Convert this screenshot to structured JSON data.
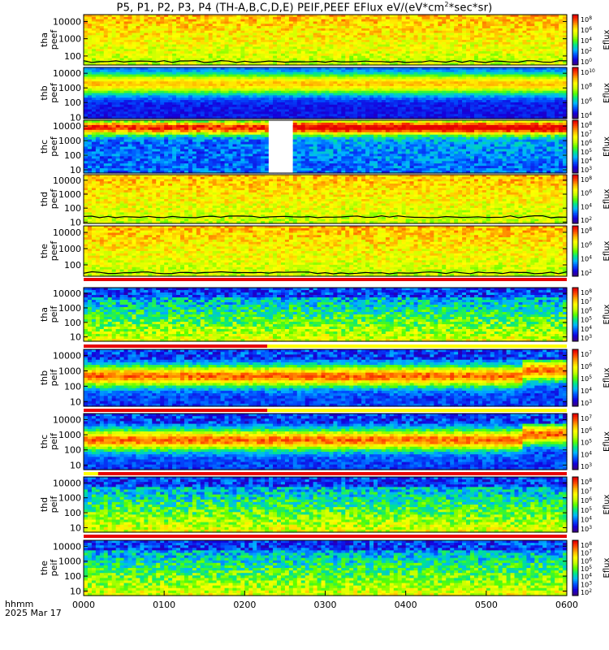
{
  "title_prefix": "P5, P1, P2, P3, P4 (TH-A,B,C,D,E) PEIF,PEEF EFlux eV/(eV*cm",
  "title_sup": "2",
  "title_suffix": "*sec*sr)",
  "footer": {
    "hhmm_label": "hhmm",
    "date_label": "2025 Mar 17"
  },
  "colors": {
    "spectrum": [
      "#3c0082",
      "#1400dc",
      "#0050ff",
      "#00b4ff",
      "#00e68c",
      "#5aff00",
      "#c8ff00",
      "#ffff00",
      "#ffb400",
      "#ff5000",
      "#e60000"
    ]
  },
  "chart_data": [
    {
      "type": "heatmap",
      "probe": "tha",
      "species": "peef",
      "ylabels": [
        "tha",
        "peef"
      ],
      "yscale": "log",
      "yticks": [
        "10000",
        "1000",
        "100"
      ],
      "ylim": [
        30,
        25000
      ],
      "colorbar": {
        "label": "Eflux",
        "ticks": [
          "10^8",
          "10^6",
          "10^4",
          "10^2",
          "10^0"
        ]
      },
      "x_ticks": [
        "0000",
        "0100",
        "0200",
        "0300",
        "0400",
        "0500",
        "0600"
      ]
    },
    {
      "type": "heatmap",
      "probe": "thb",
      "species": "peef",
      "ylabels": [
        "thb",
        "peef"
      ],
      "yscale": "log",
      "yticks": [
        "10000",
        "1000",
        "100",
        "10"
      ],
      "ylim": [
        8,
        25000
      ],
      "colorbar": {
        "label": "Eflux",
        "ticks": [
          "10^10",
          "10^8",
          "10^6",
          "10^4"
        ]
      },
      "x_ticks": [
        "0000",
        "0100",
        "0200",
        "0300",
        "0400",
        "0500",
        "0600"
      ]
    },
    {
      "type": "heatmap",
      "probe": "thc",
      "species": "peef",
      "ylabels": [
        "thc",
        "peef"
      ],
      "yscale": "log",
      "yticks": [
        "10000",
        "1000",
        "100",
        "10"
      ],
      "ylim": [
        6,
        25000
      ],
      "colorbar": {
        "label": "Eflux",
        "ticks": [
          "10^8",
          "10^7",
          "10^6",
          "10^5",
          "10^4",
          "10^3"
        ]
      },
      "x_ticks": [
        "0000",
        "0100",
        "0200",
        "0300",
        "0400",
        "0500",
        "0600"
      ]
    },
    {
      "type": "heatmap",
      "probe": "thd",
      "species": "peef",
      "ylabels": [
        "thd",
        "peef"
      ],
      "yscale": "log",
      "yticks": [
        "10000",
        "1000",
        "100",
        "10"
      ],
      "ylim": [
        8,
        25000
      ],
      "colorbar": {
        "label": "Eflux",
        "ticks": [
          "10^8",
          "10^6",
          "10^4",
          "10^2"
        ]
      },
      "x_ticks": [
        "0000",
        "0100",
        "0200",
        "0300",
        "0400",
        "0500",
        "0600"
      ]
    },
    {
      "type": "heatmap",
      "probe": "the",
      "species": "peef",
      "ylabels": [
        "the",
        "peef"
      ],
      "yscale": "log",
      "yticks": [
        "10000",
        "1000",
        "100"
      ],
      "ylim": [
        20,
        25000
      ],
      "colorbar": {
        "label": "Eflux",
        "ticks": [
          "10^8",
          "10^6",
          "10^4",
          "10^2"
        ]
      },
      "x_ticks": [
        "0000",
        "0100",
        "0200",
        "0300",
        "0400",
        "0500",
        "0600"
      ]
    },
    {
      "type": "heatmap",
      "probe": "tha",
      "species": "peif",
      "ylabels": [
        "tha",
        "peif"
      ],
      "yscale": "log",
      "yticks": [
        "10000",
        "1000",
        "100",
        "10"
      ],
      "ylim": [
        5,
        25000
      ],
      "colorbar": {
        "label": "Eflux",
        "ticks": [
          "10^8",
          "10^7",
          "10^6",
          "10^5",
          "10^4",
          "10^3"
        ]
      },
      "x_ticks": [
        "0000",
        "0100",
        "0200",
        "0300",
        "0400",
        "0500",
        "0600"
      ]
    },
    {
      "type": "heatmap",
      "probe": "thb",
      "species": "peif",
      "ylabels": [
        "thb",
        "peif"
      ],
      "yscale": "log",
      "yticks": [
        "10000",
        "1000",
        "100",
        "10"
      ],
      "ylim": [
        5,
        25000
      ],
      "colorbar": {
        "label": "Eflux",
        "ticks": [
          "10^7",
          "10^6",
          "10^5",
          "10^4",
          "10^3"
        ]
      },
      "x_ticks": [
        "0000",
        "0100",
        "0200",
        "0300",
        "0400",
        "0500",
        "0600"
      ]
    },
    {
      "type": "heatmap",
      "probe": "thc",
      "species": "peif",
      "ylabels": [
        "thc",
        "peif"
      ],
      "yscale": "log",
      "yticks": [
        "10000",
        "1000",
        "100",
        "10"
      ],
      "ylim": [
        5,
        25000
      ],
      "colorbar": {
        "label": "Eflux",
        "ticks": [
          "10^7",
          "10^6",
          "10^5",
          "10^4",
          "10^3"
        ]
      },
      "x_ticks": [
        "0000",
        "0100",
        "0200",
        "0300",
        "0400",
        "0500",
        "0600"
      ]
    },
    {
      "type": "heatmap",
      "probe": "thd",
      "species": "peif",
      "ylabels": [
        "thd",
        "peif"
      ],
      "yscale": "log",
      "yticks": [
        "10000",
        "1000",
        "100",
        "10"
      ],
      "ylim": [
        5,
        25000
      ],
      "colorbar": {
        "label": "Eflux",
        "ticks": [
          "10^8",
          "10^7",
          "10^6",
          "10^5",
          "10^4",
          "10^3"
        ]
      },
      "x_ticks": [
        "0000",
        "0100",
        "0200",
        "0300",
        "0400",
        "0500",
        "0600"
      ]
    },
    {
      "type": "heatmap",
      "probe": "the",
      "species": "peif",
      "ylabels": [
        "the",
        "peif"
      ],
      "yscale": "log",
      "yticks": [
        "10000",
        "1000",
        "100",
        "10"
      ],
      "ylim": [
        5,
        25000
      ],
      "colorbar": {
        "label": "Eflux",
        "ticks": [
          "10^8",
          "10^7",
          "10^6",
          "10^5",
          "10^4",
          "10^3",
          "10^2"
        ]
      },
      "x_ticks": [
        "0000",
        "0100",
        "0200",
        "0300",
        "0400",
        "0500",
        "0600"
      ]
    }
  ],
  "x_axis": {
    "ticks": [
      "0000",
      "0100",
      "0200",
      "0300",
      "0400",
      "0500",
      "0600"
    ],
    "range_hours": [
      0,
      6
    ]
  }
}
